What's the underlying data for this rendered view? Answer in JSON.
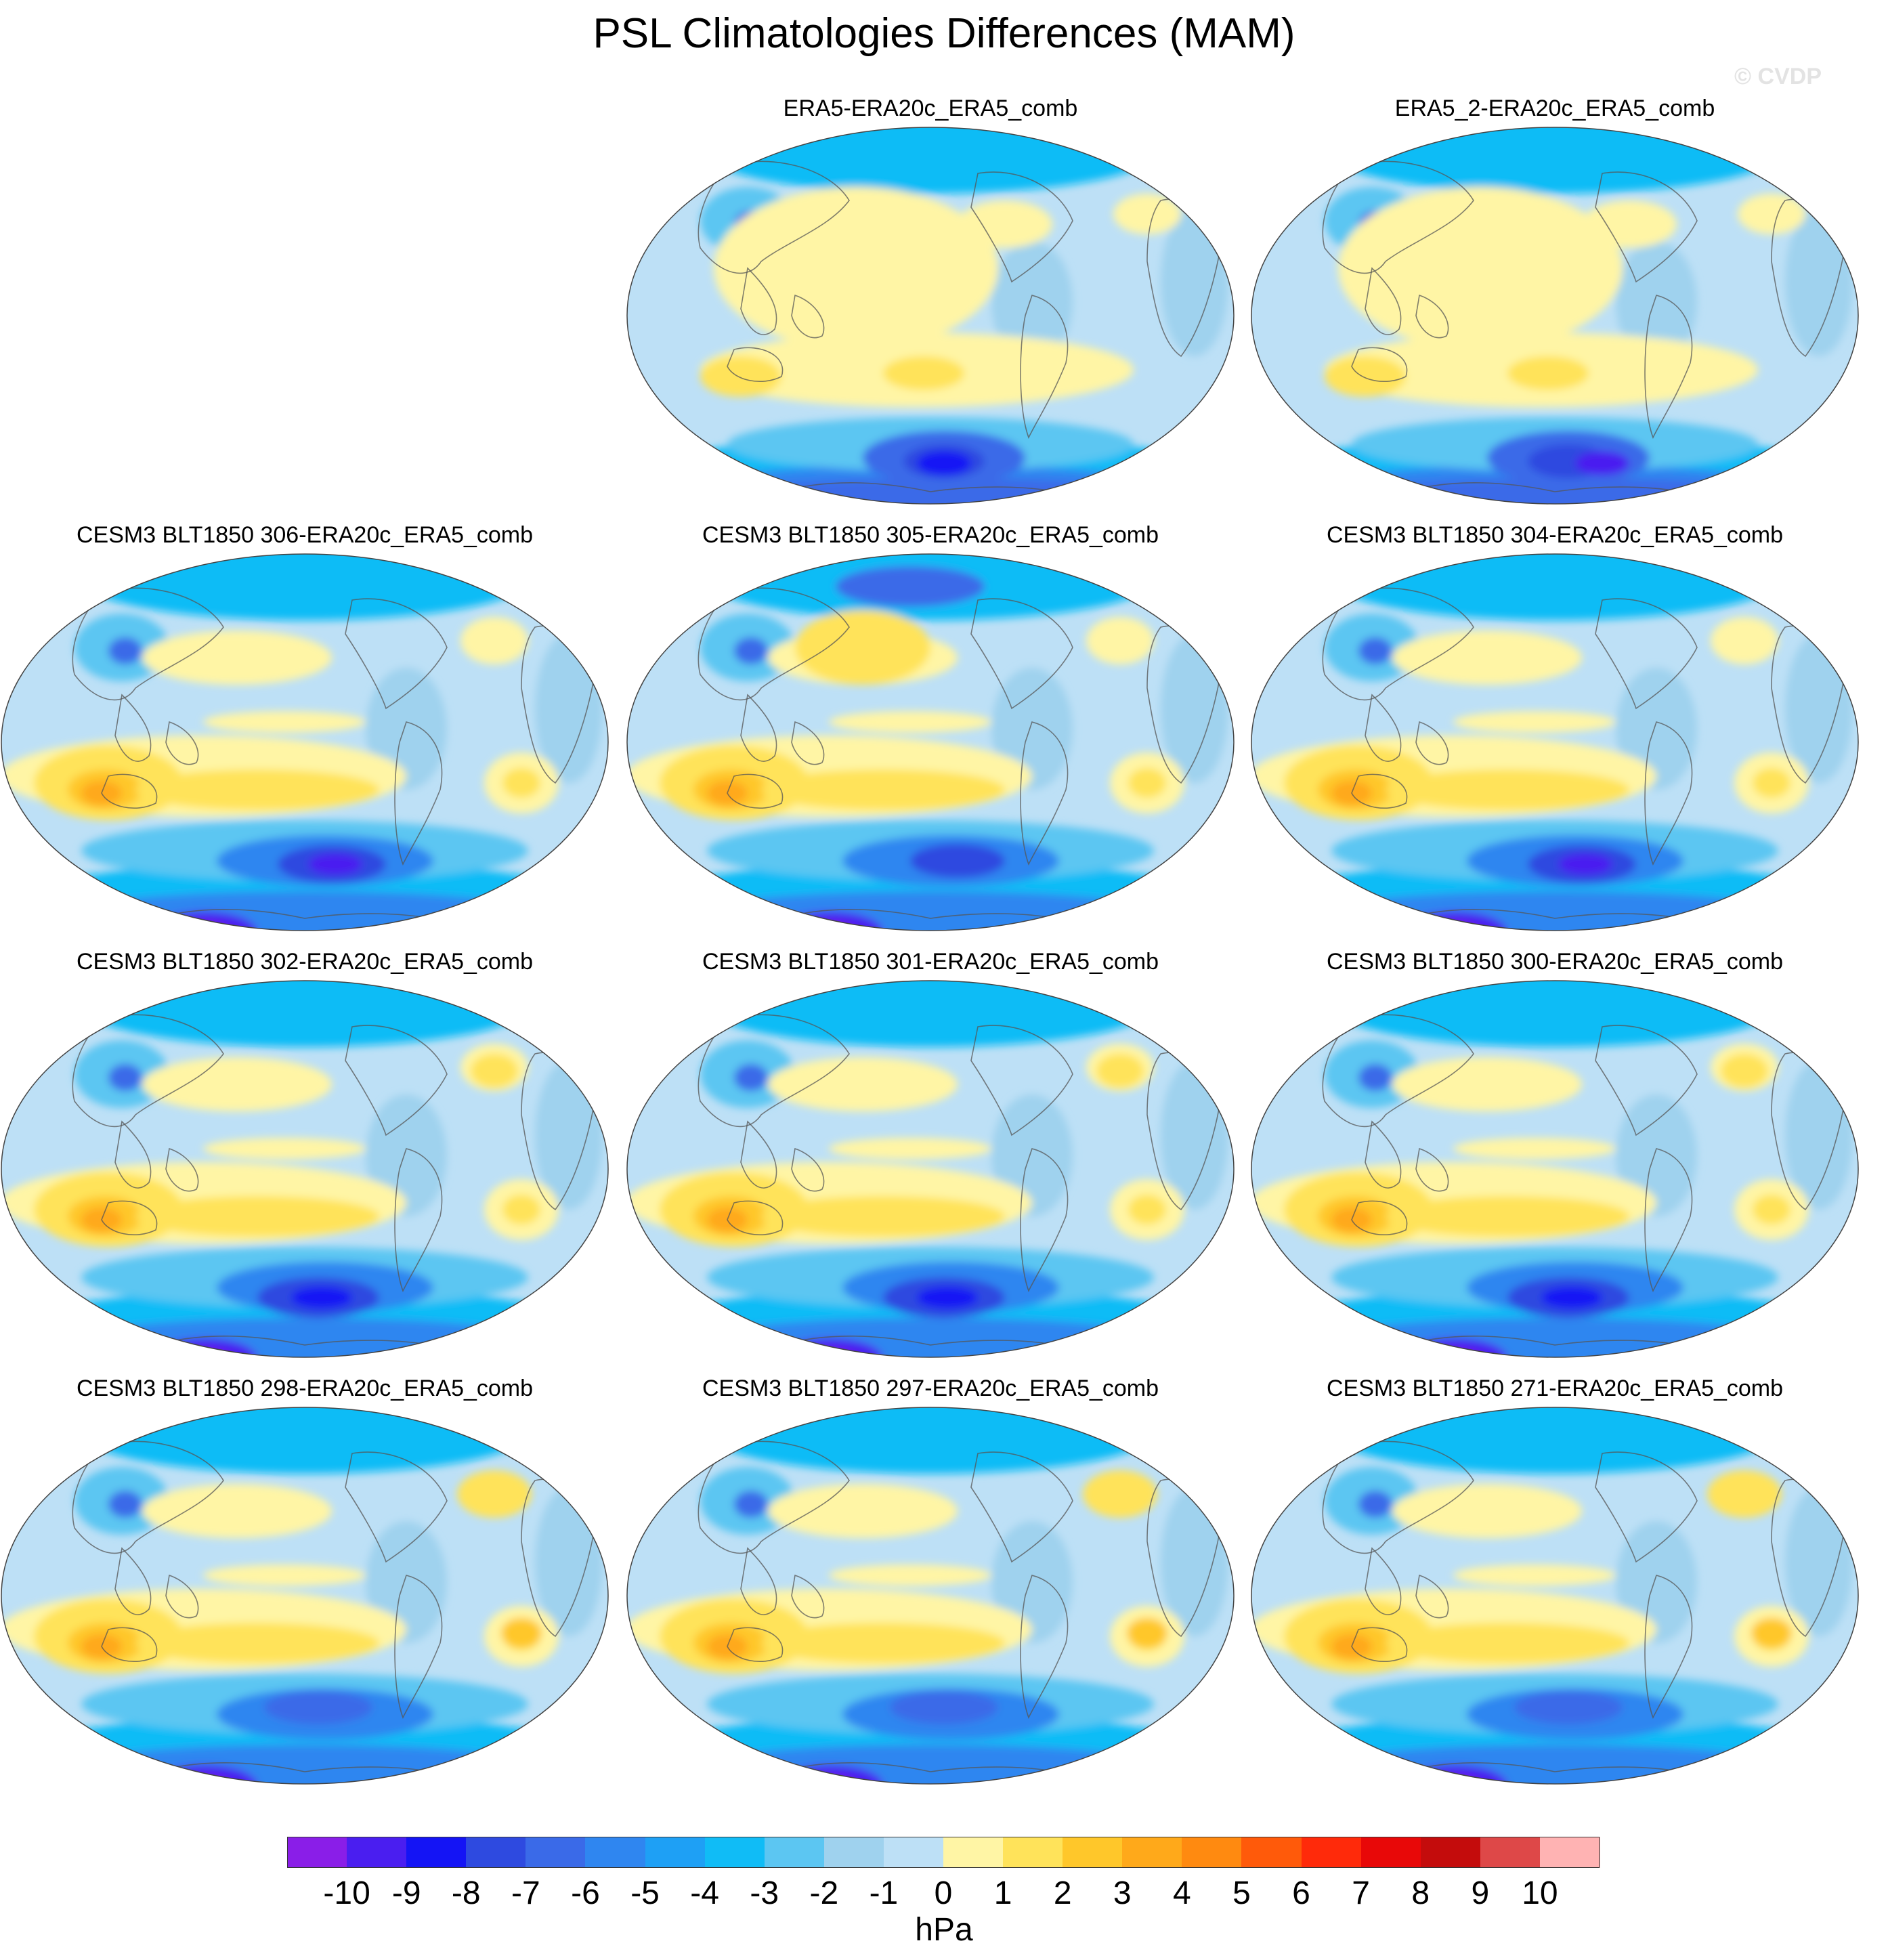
{
  "title": "PSL Climatologies Differences (MAM)",
  "credit": "© CVDP",
  "units": "hPa",
  "panels": [
    {
      "id": "p1",
      "label": "ERA5-ERA20c_ERA5_comb",
      "variant": "obs"
    },
    {
      "id": "p2",
      "label": "ERA5_2-ERA20c_ERA5_comb",
      "variant": "obs2"
    },
    {
      "id": "p3",
      "label": "CESM3 BLT1850 306-ERA20c_ERA5_comb",
      "variant": "m1"
    },
    {
      "id": "p4",
      "label": "CESM3 BLT1850 305-ERA20c_ERA5_comb",
      "variant": "m2"
    },
    {
      "id": "p5",
      "label": "CESM3 BLT1850 304-ERA20c_ERA5_comb",
      "variant": "m1"
    },
    {
      "id": "p6",
      "label": "CESM3 BLT1850 302-ERA20c_ERA5_comb",
      "variant": "m3"
    },
    {
      "id": "p7",
      "label": "CESM3 BLT1850 301-ERA20c_ERA5_comb",
      "variant": "m3"
    },
    {
      "id": "p8",
      "label": "CESM3 BLT1850 300-ERA20c_ERA5_comb",
      "variant": "m3"
    },
    {
      "id": "p9",
      "label": "CESM3 BLT1850 298-ERA20c_ERA5_comb",
      "variant": "m4"
    },
    {
      "id": "p10",
      "label": "CESM3 BLT1850 297-ERA20c_ERA5_comb",
      "variant": "m4"
    },
    {
      "id": "p11",
      "label": "CESM3 BLT1850 271-ERA20c_ERA5_comb",
      "variant": "m4"
    }
  ],
  "colorbar": {
    "levels": [
      "-10",
      "-9",
      "-8",
      "-7",
      "-6",
      "-5",
      "-4",
      "-3",
      "-2",
      "-1",
      "0",
      "1",
      "2",
      "3",
      "4",
      "5",
      "6",
      "7",
      "8",
      "9",
      "10"
    ],
    "colors": [
      "#8a1ee8",
      "#4a1ef0",
      "#1414f5",
      "#2e4ae0",
      "#3a6ae8",
      "#2f86f0",
      "#1ea0f5",
      "#10bcf6",
      "#5cc6f2",
      "#9fd2ee",
      "#bde0f6",
      "#fff5a5",
      "#ffe35a",
      "#ffc72a",
      "#ffa91a",
      "#ff8a10",
      "#ff5a0a",
      "#ff2a0a",
      "#e80808",
      "#c40c0c",
      "#de4848",
      "#ffb3b3"
    ]
  }
}
